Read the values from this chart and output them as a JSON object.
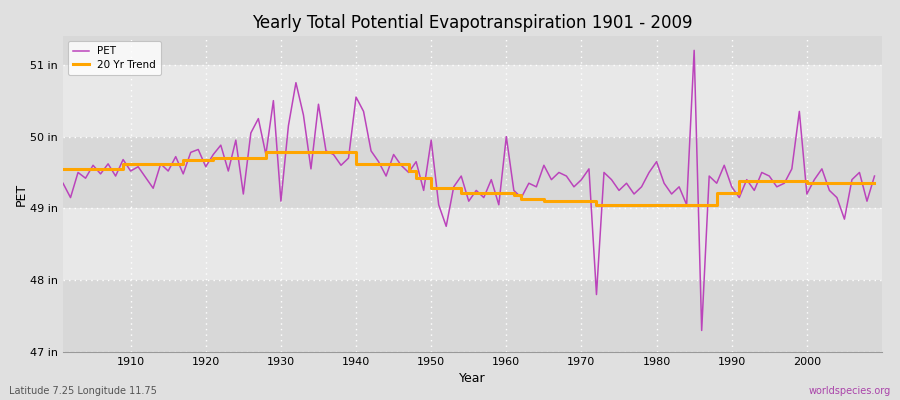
{
  "title": "Yearly Total Potential Evapotranspiration 1901 - 2009",
  "xlabel": "Year",
  "ylabel": "PET",
  "subtitle_left": "Latitude 7.25 Longitude 11.75",
  "subtitle_right": "worldspecies.org",
  "pet_color": "#BB44BB",
  "trend_color": "#FFA500",
  "bg_color": "#E0E0E0",
  "ylim": [
    47.0,
    51.4
  ],
  "xlim": [
    1901,
    2010
  ],
  "yticks": [
    47,
    48,
    49,
    50,
    51
  ],
  "ytick_labels": [
    "47 in",
    "48 in",
    "49 in",
    "50 in",
    "51 in"
  ],
  "xticks": [
    1910,
    1920,
    1930,
    1940,
    1950,
    1960,
    1970,
    1980,
    1990,
    2000
  ],
  "years": [
    1901,
    1902,
    1903,
    1904,
    1905,
    1906,
    1907,
    1908,
    1909,
    1910,
    1911,
    1912,
    1913,
    1914,
    1915,
    1916,
    1917,
    1918,
    1919,
    1920,
    1921,
    1922,
    1923,
    1924,
    1925,
    1926,
    1927,
    1928,
    1929,
    1930,
    1931,
    1932,
    1933,
    1934,
    1935,
    1936,
    1937,
    1938,
    1939,
    1940,
    1941,
    1942,
    1943,
    1944,
    1945,
    1946,
    1947,
    1948,
    1949,
    1950,
    1951,
    1952,
    1953,
    1954,
    1955,
    1956,
    1957,
    1958,
    1959,
    1960,
    1961,
    1962,
    1963,
    1964,
    1965,
    1966,
    1967,
    1968,
    1969,
    1970,
    1971,
    1972,
    1973,
    1974,
    1975,
    1976,
    1977,
    1978,
    1979,
    1980,
    1981,
    1982,
    1983,
    1984,
    1985,
    1986,
    1987,
    1988,
    1989,
    1990,
    1991,
    1992,
    1993,
    1994,
    1995,
    1996,
    1997,
    1998,
    1999,
    2000,
    2001,
    2002,
    2003,
    2004,
    2005,
    2006,
    2007,
    2008,
    2009
  ],
  "pet_values": [
    49.35,
    49.15,
    49.5,
    49.42,
    49.6,
    49.48,
    49.62,
    49.45,
    49.68,
    49.52,
    49.58,
    49.43,
    49.28,
    49.62,
    49.52,
    49.72,
    49.48,
    49.78,
    49.82,
    49.58,
    49.75,
    49.88,
    49.52,
    49.95,
    49.2,
    50.05,
    50.25,
    49.75,
    50.5,
    49.1,
    50.15,
    50.75,
    50.3,
    49.55,
    50.45,
    49.8,
    49.75,
    49.6,
    49.7,
    50.55,
    50.35,
    49.8,
    49.65,
    49.45,
    49.75,
    49.6,
    49.5,
    49.65,
    49.25,
    49.95,
    49.05,
    48.75,
    49.3,
    49.45,
    49.1,
    49.25,
    49.15,
    49.4,
    49.05,
    50.0,
    49.25,
    49.15,
    49.35,
    49.3,
    49.6,
    49.4,
    49.5,
    49.45,
    49.3,
    49.4,
    49.55,
    47.8,
    49.5,
    49.4,
    49.25,
    49.35,
    49.2,
    49.3,
    49.5,
    49.65,
    49.35,
    49.2,
    49.3,
    49.05,
    51.2,
    47.3,
    49.45,
    49.35,
    49.6,
    49.3,
    49.15,
    49.4,
    49.25,
    49.5,
    49.45,
    49.3,
    49.35,
    49.55,
    50.35,
    49.2,
    49.4,
    49.55,
    49.25,
    49.15,
    48.85,
    49.4,
    49.5,
    49.1,
    49.45
  ],
  "trend_values": [
    49.55,
    49.55,
    49.55,
    49.55,
    49.55,
    49.55,
    49.55,
    49.55,
    49.62,
    49.62,
    49.62,
    49.62,
    49.62,
    49.62,
    49.62,
    49.62,
    49.67,
    49.67,
    49.67,
    49.67,
    49.7,
    49.7,
    49.7,
    49.7,
    49.7,
    49.7,
    49.7,
    49.78,
    49.78,
    49.78,
    49.78,
    49.78,
    49.78,
    49.78,
    49.78,
    49.78,
    49.78,
    49.78,
    49.78,
    49.62,
    49.62,
    49.62,
    49.62,
    49.62,
    49.62,
    49.62,
    49.52,
    49.42,
    49.42,
    49.28,
    49.28,
    49.28,
    49.28,
    49.22,
    49.22,
    49.22,
    49.22,
    49.22,
    49.22,
    49.22,
    49.18,
    49.13,
    49.13,
    49.13,
    49.1,
    49.1,
    49.1,
    49.1,
    49.1,
    49.1,
    49.1,
    49.05,
    49.05,
    49.05,
    49.05,
    49.05,
    49.05,
    49.05,
    49.05,
    49.05,
    49.05,
    49.05,
    49.05,
    49.05,
    49.05,
    49.05,
    49.05,
    49.22,
    49.22,
    49.22,
    49.38,
    49.38,
    49.38,
    49.38,
    49.38,
    49.38,
    49.38,
    49.38,
    49.38,
    49.35,
    49.35,
    49.35,
    49.35,
    49.35,
    49.35,
    49.35,
    49.35,
    49.35,
    49.35
  ]
}
